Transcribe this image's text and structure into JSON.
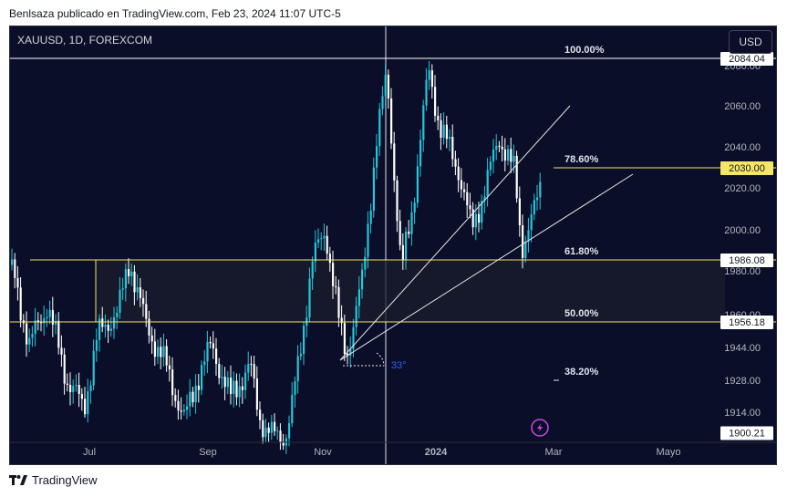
{
  "header": {
    "publisher": "Benlsaza publicado en TradingView.com, Feb 23, 2024 11:07 UTC-5"
  },
  "chart": {
    "symbol": "XAUUSD, 1D, FOREXCOM",
    "currency": "USD",
    "colors": {
      "background": "#0b0e28",
      "up": "#26c6da",
      "down": "#ffffff",
      "fib_top": "#ffffff",
      "fib_levels": "#f5e663",
      "angle": "#2962ff"
    },
    "angle_label": "33°"
  },
  "footer": {
    "brand": "TradingView",
    "logo_icon": "tradingview-logo-icon"
  },
  "chart_data": {
    "type": "candlestick",
    "symbol": "XAUUSD",
    "timeframe": "1D",
    "x_ticks": [
      "Jul",
      "Sep",
      "Nov",
      "2024",
      "Mar",
      "Mayo"
    ],
    "y_ticks": [
      1900.21,
      1914.0,
      1928.0,
      1944.0,
      1956.18,
      1960.0,
      1980.0,
      1986.08,
      2000.0,
      2020.0,
      2030.0,
      2040.0,
      2060.0,
      2080.0,
      2084.04
    ],
    "price_labels": [
      {
        "value": 2084.04,
        "highlight": "white"
      },
      {
        "value": 2030.0,
        "highlight": "yellow"
      },
      {
        "value": 1986.08,
        "highlight": "white"
      },
      {
        "value": 1956.18,
        "highlight": "white"
      },
      {
        "value": 1900.21,
        "highlight": "white"
      }
    ],
    "fib_levels": [
      {
        "label": "100.00%",
        "price": 2084.04
      },
      {
        "label": "78.60%",
        "price": 2030.0
      },
      {
        "label": "61.80%",
        "price": 1986.08
      },
      {
        "label": "50.00%",
        "price": 1956.18
      },
      {
        "label": "38.20%",
        "price": 1928.0
      }
    ],
    "zone": {
      "top": 1986.08,
      "bottom": 1956.18
    },
    "ylim": [
      1898,
      2092
    ]
  }
}
